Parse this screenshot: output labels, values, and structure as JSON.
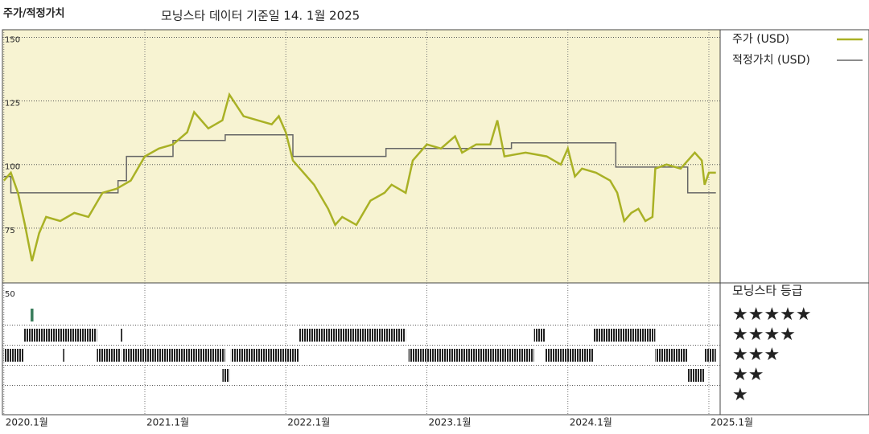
{
  "chart_data": {
    "type": "line",
    "title": "주가/적정가치",
    "subtitle": "모닝스타 데이터 기준일 14. 1월 2025",
    "xlim": [
      2019.99,
      2025.08
    ],
    "xticks": [
      {
        "value": 2020,
        "label": "2020.1월"
      },
      {
        "value": 2021,
        "label": "2021.1월"
      },
      {
        "value": 2022,
        "label": "2022.1월"
      },
      {
        "value": 2023,
        "label": "2023.1월"
      },
      {
        "value": 2024,
        "label": "2024.1월"
      },
      {
        "value": 2025,
        "label": "2025.1월"
      }
    ],
    "ylim": [
      50,
      153
    ],
    "yticks": [
      150,
      125,
      100,
      75,
      50
    ],
    "grid": true,
    "series": [
      {
        "name": "주가 (USD)",
        "color": "#a9b125",
        "x": [
          2020.0,
          2020.05,
          2020.1,
          2020.15,
          2020.2,
          2020.25,
          2020.3,
          2020.4,
          2020.5,
          2020.6,
          2020.7,
          2020.8,
          2020.9,
          2021.0,
          2021.1,
          2021.2,
          2021.3,
          2021.35,
          2021.45,
          2021.55,
          2021.6,
          2021.7,
          2021.8,
          2021.9,
          2021.95,
          2022.0,
          2022.05,
          2022.1,
          2022.2,
          2022.3,
          2022.35,
          2022.4,
          2022.5,
          2022.6,
          2022.7,
          2022.75,
          2022.85,
          2022.9,
          2023.0,
          2023.1,
          2023.2,
          2023.25,
          2023.35,
          2023.45,
          2023.5,
          2023.55,
          2023.7,
          2023.85,
          2023.95,
          2024.0,
          2024.05,
          2024.1,
          2024.2,
          2024.3,
          2024.35,
          2024.4,
          2024.45,
          2024.5,
          2024.55,
          2024.6,
          2024.62,
          2024.7,
          2024.8,
          2024.9,
          2024.95,
          2024.97,
          2025.0,
          2025.05
        ],
        "values": [
          93.7,
          96.8,
          88.9,
          76.3,
          62,
          73,
          79.4,
          77.8,
          81,
          79.4,
          88.9,
          90.5,
          93.7,
          103.2,
          106.3,
          107.9,
          112.7,
          120.6,
          114.2,
          117.4,
          127.5,
          119,
          117.4,
          115.8,
          119,
          112.7,
          101.6,
          98.4,
          92.1,
          82.6,
          76.3,
          79.4,
          76.3,
          85.8,
          88.9,
          92.1,
          88.9,
          101.6,
          107.9,
          106.3,
          111.1,
          104.7,
          107.9,
          107.9,
          117.4,
          103.2,
          104.7,
          103.2,
          100,
          106.3,
          95.3,
          98.4,
          96.8,
          93.7,
          88.9,
          77.8,
          81,
          82.6,
          77.8,
          79.4,
          98.4,
          100,
          98.4,
          104.7,
          101.6,
          92.1,
          96.8,
          96.8
        ]
      },
      {
        "name": "적정가치 (USD)",
        "color": "#666666",
        "x": [
          2020.0,
          2020.05,
          2020.05,
          2020.81,
          2020.81,
          2020.87,
          2020.87,
          2021.2,
          2021.2,
          2021.57,
          2021.57,
          2022.05,
          2022.05,
          2022.71,
          2022.71,
          2023.6,
          2023.6,
          2024.34,
          2024.34,
          2024.85,
          2024.85,
          2025.05
        ],
        "values": [
          95.3,
          95.3,
          88.9,
          88.9,
          93.7,
          93.7,
          103.2,
          103.2,
          109.5,
          109.5,
          111.7,
          111.7,
          103.2,
          103.2,
          106.3,
          106.3,
          108.5,
          108.5,
          99,
          99,
          88.9,
          88.9
        ]
      }
    ],
    "rating_title": "모닝스타 등급",
    "rating_labels": [
      "★★★★★",
      "★★★★",
      "★★★",
      "★★",
      "★"
    ],
    "rating_levels": [
      5,
      4,
      3,
      2,
      1
    ],
    "ratings": {
      "stars": [
        5,
        4,
        4,
        4,
        4,
        4,
        3,
        3,
        3,
        3,
        3,
        3,
        3,
        3,
        3,
        2,
        2
      ],
      "start": [
        2020.19,
        2020.14,
        2020.83,
        2022.09,
        2023.76,
        2024.18,
        2020.0,
        2020.42,
        2020.66,
        2020.84,
        2021.61,
        2022.87,
        2023.84,
        2024.62,
        2024.97,
        2021.55,
        2024.85
      ],
      "end": [
        2020.21,
        2020.66,
        2020.84,
        2022.85,
        2023.84,
        2024.62,
        2020.14,
        2020.43,
        2020.83,
        2021.57,
        2022.09,
        2023.76,
        2024.18,
        2024.85,
        2025.05,
        2021.6,
        2024.97
      ],
      "colors": {
        "5": "#3a7d5c",
        "other": "#222222"
      }
    }
  }
}
